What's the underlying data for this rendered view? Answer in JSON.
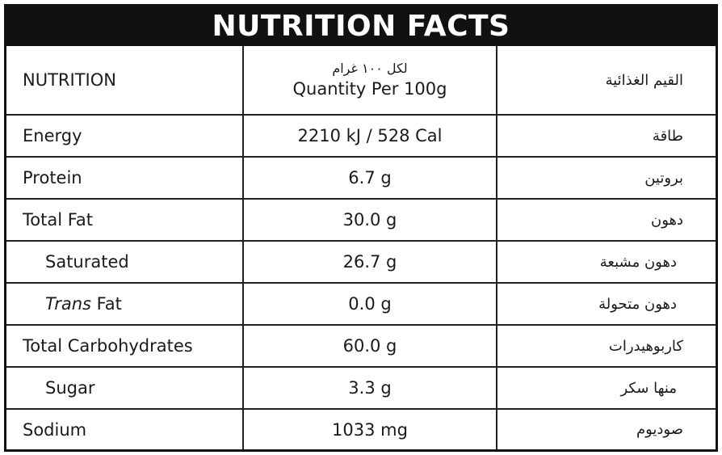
{
  "title": "NUTRITION FACTS",
  "header": {
    "nutrition_en": "NUTRITION",
    "quantity_ar": "لكل ١٠٠ غرام",
    "quantity_en": "Quantity Per 100g",
    "nutrition_ar": "القيم الغذائية"
  },
  "rows": [
    {
      "name_en": "Energy",
      "value": "2210 kJ / 528 Cal",
      "name_ar": "طاقة"
    },
    {
      "name_en": "Protein",
      "value": "6.7 g",
      "name_ar": "بروتين"
    },
    {
      "name_en": "Total Fat",
      "value": "30.0 g",
      "name_ar": "دهون"
    },
    {
      "name_en": "Saturated",
      "value": "26.7 g",
      "name_ar": "دهون مشبعة"
    },
    {
      "name_en_italic": "Trans",
      "name_en_rest": " Fat",
      "value": "0.0 g",
      "name_ar": "دهون متحولة"
    },
    {
      "name_en": "Total Carbohydrates",
      "value": "60.0 g",
      "name_ar": "كاربوهيدرات"
    },
    {
      "name_en": "Sugar",
      "value": "3.3 g",
      "name_ar": "منها سكر"
    },
    {
      "name_en": "Sodium",
      "value": "1033 mg",
      "name_ar": "صوديوم"
    }
  ]
}
